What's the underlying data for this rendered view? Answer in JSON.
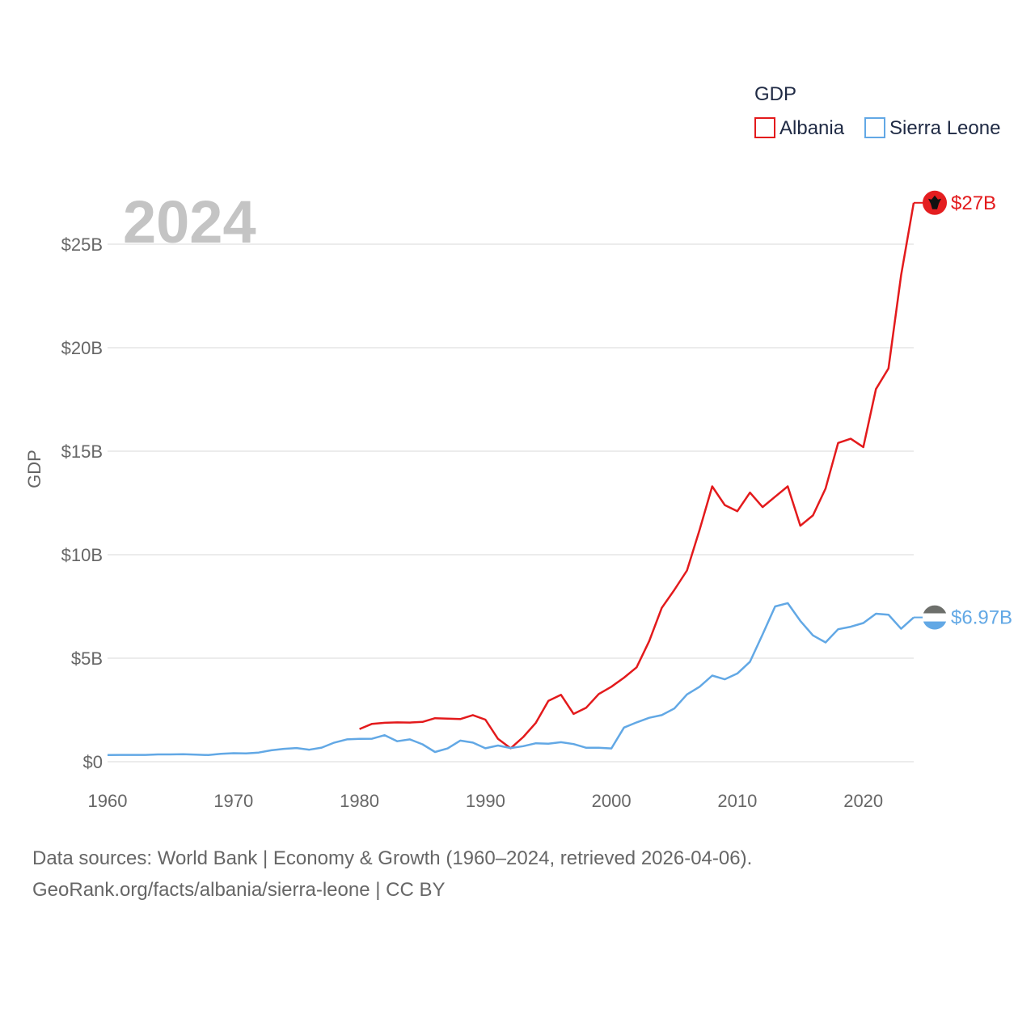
{
  "chart_data": {
    "type": "line",
    "year_label": "2024",
    "ylabel": "GDP",
    "xlabel": "",
    "xlim": [
      1960,
      2024
    ],
    "ylim": [
      0,
      27
    ],
    "x_ticks": [
      1960,
      1970,
      1980,
      1990,
      2000,
      2010,
      2020
    ],
    "x_tick_labels": [
      "1960",
      "1970",
      "1980",
      "1990",
      "2000",
      "2010",
      "2020"
    ],
    "y_ticks": [
      0,
      5,
      10,
      15,
      20,
      25
    ],
    "y_tick_labels": [
      "$0",
      "$5B",
      "$10B",
      "$15B",
      "$20B",
      "$25B"
    ],
    "grid": true,
    "legend": {
      "title": "GDP",
      "position": "top-right",
      "entries": [
        "Albania",
        "Sierra Leone"
      ]
    },
    "series": [
      {
        "name": "Albania",
        "color": "#e31a1c",
        "end_label": "$27B",
        "flag": "albania-flag",
        "x": [
          1980,
          1981,
          1982,
          1983,
          1984,
          1985,
          1986,
          1987,
          1988,
          1989,
          1990,
          1991,
          1992,
          1993,
          1994,
          1995,
          1996,
          1997,
          1998,
          1999,
          2000,
          2001,
          2002,
          2003,
          2004,
          2005,
          2006,
          2007,
          2008,
          2009,
          2010,
          2011,
          2012,
          2013,
          2014,
          2015,
          2016,
          2017,
          2018,
          2019,
          2020,
          2021,
          2022,
          2023,
          2024
        ],
        "values": [
          1.58,
          1.83,
          1.88,
          1.9,
          1.89,
          1.92,
          2.1,
          2.08,
          2.06,
          2.25,
          2.03,
          1.1,
          0.65,
          1.19,
          1.88,
          2.94,
          3.23,
          2.31,
          2.61,
          3.27,
          3.62,
          4.06,
          4.56,
          5.83,
          7.43,
          8.3,
          9.24,
          11.2,
          13.3,
          12.4,
          12.1,
          13.0,
          12.3,
          12.8,
          13.3,
          11.4,
          11.9,
          13.2,
          15.4,
          15.6,
          15.2,
          18.0,
          19.0,
          23.5,
          27.0
        ]
      },
      {
        "name": "Sierra Leone",
        "color": "#62a8e5",
        "end_label": "$6.97B",
        "flag": "sierra-leone-flag",
        "x": [
          1960,
          1961,
          1962,
          1963,
          1964,
          1965,
          1966,
          1967,
          1968,
          1969,
          1970,
          1971,
          1972,
          1973,
          1974,
          1975,
          1976,
          1977,
          1978,
          1979,
          1980,
          1981,
          1982,
          1983,
          1984,
          1985,
          1986,
          1987,
          1988,
          1989,
          1990,
          1991,
          1992,
          1993,
          1994,
          1995,
          1996,
          1997,
          1998,
          1999,
          2000,
          2001,
          2002,
          2003,
          2004,
          2005,
          2006,
          2007,
          2008,
          2009,
          2010,
          2011,
          2012,
          2013,
          2014,
          2015,
          2016,
          2017,
          2018,
          2019,
          2020,
          2021,
          2022,
          2023,
          2024
        ],
        "values": [
          0.32,
          0.33,
          0.33,
          0.33,
          0.35,
          0.35,
          0.36,
          0.34,
          0.32,
          0.38,
          0.41,
          0.4,
          0.44,
          0.55,
          0.62,
          0.66,
          0.58,
          0.68,
          0.92,
          1.08,
          1.1,
          1.11,
          1.28,
          0.99,
          1.08,
          0.84,
          0.47,
          0.64,
          1.02,
          0.92,
          0.65,
          0.78,
          0.66,
          0.75,
          0.89,
          0.87,
          0.94,
          0.85,
          0.67,
          0.67,
          0.64,
          1.65,
          1.9,
          2.12,
          2.25,
          2.57,
          3.25,
          3.62,
          4.16,
          3.98,
          4.26,
          4.83,
          6.15,
          7.5,
          7.66,
          6.8,
          6.1,
          5.76,
          6.4,
          6.52,
          6.7,
          7.15,
          7.1,
          6.42,
          6.97
        ]
      }
    ]
  },
  "source": {
    "line1": "Data sources: World Bank | Economy & Growth (1960–2024, retrieved 2026-04-06).",
    "line2": "GeoRank.org/facts/albania/sierra-leone | CC BY"
  }
}
